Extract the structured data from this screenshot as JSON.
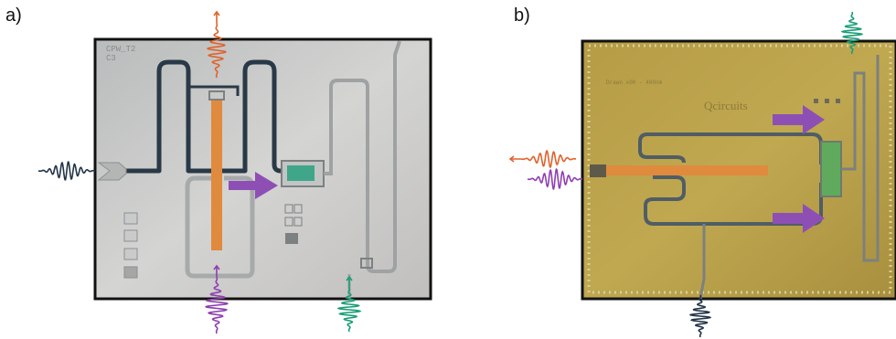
{
  "panels": [
    {
      "label": "a)",
      "chip_text": [
        "CPW_T2",
        "C3"
      ]
    },
    {
      "label": "b)",
      "chip_text": [
        "Qcircuits",
        "Drawn x00 - 400nm"
      ]
    }
  ],
  "colors": {
    "resonator": "#e08a3e",
    "arrow": "#8e4fb5",
    "teal": "#2fa88a",
    "navy": "#233448",
    "red_pulse": "#e0622c",
    "purple_pulse": "#8e3fb0",
    "green_pulse": "#1b9e77",
    "chip_a": "#c7c8c7",
    "chip_b": "#b8a24c"
  }
}
